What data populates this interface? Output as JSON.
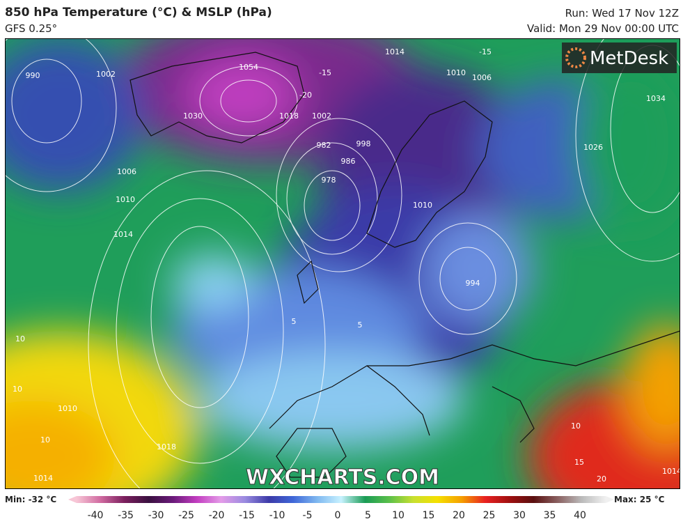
{
  "header": {
    "title": "850 hPa Temperature (°C) & MSLP (hPa)",
    "model": "GFS 0.25°",
    "run": "Run: Wed 17 Nov 12Z",
    "valid": "Valid: Mon 29 Nov 00:00 UTC"
  },
  "map": {
    "logo": "MetDesk",
    "watermark": "WXCHARTS.COM",
    "contour_labels": [
      "1054",
      "1030",
      "982",
      "978",
      "998",
      "986",
      "1010",
      "994",
      "1006",
      "1010",
      "1014",
      "1018",
      "1010",
      "1014",
      "10",
      "10",
      "10",
      "10",
      "15",
      "20",
      "1014",
      "1034",
      "1026",
      "1002",
      "990",
      "1014",
      "1010",
      "1006",
      "5",
      "5",
      "-15",
      "-20",
      "-15",
      "1018",
      "1002"
    ]
  },
  "legend": {
    "min": "Min: -32 °C",
    "max": "Max: 25 °C",
    "ticks": [
      -40,
      -35,
      -30,
      -25,
      -20,
      -15,
      -10,
      -5,
      0,
      5,
      10,
      15,
      20,
      25,
      30,
      35,
      40
    ]
  }
}
